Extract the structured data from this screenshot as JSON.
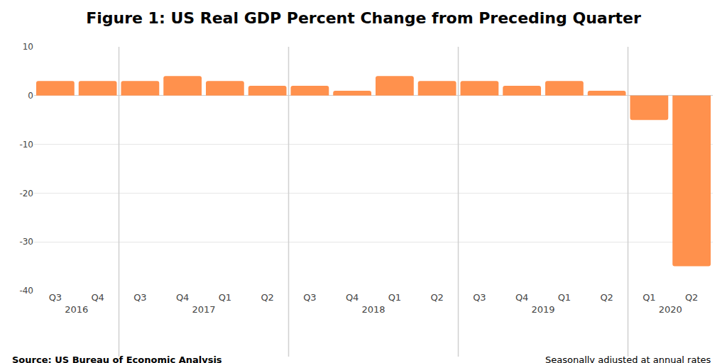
{
  "chart_data": {
    "type": "bar",
    "title": "Figure 1: US Real GDP Percent Change from Preceding Quarter",
    "categories": [
      [
        "2016",
        "Q3"
      ],
      [
        "2016",
        "Q4"
      ],
      [
        "2017",
        "Q1"
      ],
      [
        "2017",
        "Q2"
      ],
      [
        "2017",
        "Q3"
      ],
      [
        "2017",
        "Q4"
      ],
      [
        "2018",
        "Q1"
      ],
      [
        "2018",
        "Q2"
      ],
      [
        "2018",
        "Q3"
      ],
      [
        "2018",
        "Q4"
      ],
      [
        "2019",
        "Q1"
      ],
      [
        "2019",
        "Q2"
      ],
      [
        "2019",
        "Q3"
      ],
      [
        "2019",
        "Q4"
      ],
      [
        "2020",
        "Q1"
      ],
      [
        "2020",
        "Q2"
      ]
    ],
    "values": [
      3,
      3,
      3,
      2,
      3,
      4,
      4,
      3,
      2,
      1,
      3,
      1,
      3,
      2,
      -5,
      -35
    ],
    "color": "#ff914d",
    "ylim": [
      -40,
      10
    ],
    "yticks": [
      -40,
      -30,
      -20,
      -10,
      0,
      10
    ],
    "grid": true,
    "source": "Source: US Bureau of Economic Analysis",
    "note": "Seasonally adjusted at annual rates"
  }
}
